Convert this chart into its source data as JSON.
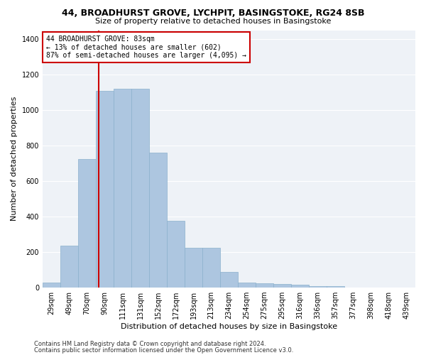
{
  "title_line1": "44, BROADHURST GROVE, LYCHPIT, BASINGSTOKE, RG24 8SB",
  "title_line2": "Size of property relative to detached houses in Basingstoke",
  "xlabel": "Distribution of detached houses by size in Basingstoke",
  "ylabel": "Number of detached properties",
  "bar_color": "#adc6e0",
  "bar_edge_color": "#8ab0cc",
  "background_color": "#eef2f7",
  "grid_color": "#ffffff",
  "categories": [
    "29sqm",
    "49sqm",
    "70sqm",
    "90sqm",
    "111sqm",
    "131sqm",
    "152sqm",
    "172sqm",
    "193sqm",
    "213sqm",
    "234sqm",
    "254sqm",
    "275sqm",
    "295sqm",
    "316sqm",
    "336sqm",
    "357sqm",
    "377sqm",
    "398sqm",
    "418sqm",
    "439sqm"
  ],
  "values": [
    30,
    235,
    725,
    1110,
    1120,
    1120,
    760,
    375,
    225,
    225,
    90,
    30,
    25,
    20,
    15,
    10,
    10,
    0,
    0,
    0,
    0
  ],
  "ylim": [
    0,
    1450
  ],
  "yticks": [
    0,
    200,
    400,
    600,
    800,
    1000,
    1200,
    1400
  ],
  "annotation_text_line1": "44 BROADHURST GROVE: 83sqm",
  "annotation_text_line2": "← 13% of detached houses are smaller (602)",
  "annotation_text_line3": "87% of semi-detached houses are larger (4,095) →",
  "annotation_box_color": "#ffffff",
  "annotation_box_edge": "#cc0000",
  "red_line_color": "#cc0000",
  "footer_line1": "Contains HM Land Registry data © Crown copyright and database right 2024.",
  "footer_line2": "Contains public sector information licensed under the Open Government Licence v3.0.",
  "title_fontsize": 9,
  "subtitle_fontsize": 8,
  "ylabel_fontsize": 8,
  "xlabel_fontsize": 8,
  "tick_fontsize": 7,
  "annotation_fontsize": 7,
  "footer_fontsize": 6
}
